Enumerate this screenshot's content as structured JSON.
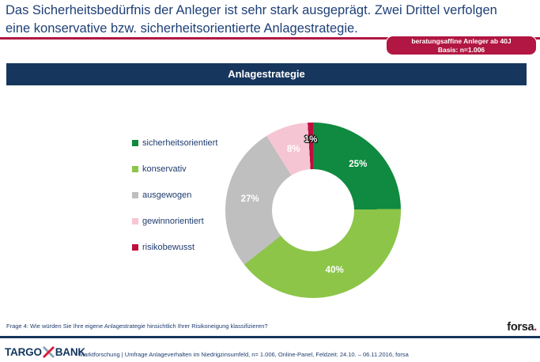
{
  "header": {
    "title": "Das Sicherheitsbedürfnis der Anleger ist sehr stark ausgeprägt. Zwei Drittel verfolgen eine konservative bzw. sicherheitsorientierte Anlagestrategie."
  },
  "badge": {
    "line1": "beratungsaffine Anleger ab 40J",
    "line2": "Basis: n=1.006"
  },
  "section": {
    "title": "Anlagestrategie"
  },
  "chart_data": {
    "type": "pie",
    "subtype": "donut",
    "title": "Anlagestrategie",
    "categories": [
      "sicherheitsorientiert",
      "konservativ",
      "ausgewogen",
      "gewinnorientiert",
      "risikobewusst"
    ],
    "values": [
      25,
      40,
      27,
      8,
      1
    ],
    "labels": [
      "25%",
      "40%",
      "27%",
      "8%",
      "1%"
    ],
    "colors": [
      "#0F8A40",
      "#8DC549",
      "#BFBFBF",
      "#F6C5D3",
      "#BE0D3E"
    ],
    "start_angle_deg": 0,
    "direction": "clockwise",
    "legend_position": "left",
    "label_color": "#FFFFFF"
  },
  "footer": {
    "question": "Frage 4: Wie würden Sie Ihre eigene Anlagestrategie hinsichtlich Ihrer Risikoneigung klassifizieren?",
    "forsa_name": "forsa",
    "forsa_dot": ".",
    "source_line": "Marktforschung | Umfrage Anlageverhalten im Niedrigzinsumfeld, n= 1.006, Online-Panel, Feldzeit: 24.10. – 06.11.2016, forsa",
    "brand_part1": "TARGO",
    "brand_part2": "BANK"
  },
  "theme_colors": {
    "accent_crimson": "#B11742",
    "navy_bar": "#17365D",
    "navy_text": "#1E3F77"
  }
}
